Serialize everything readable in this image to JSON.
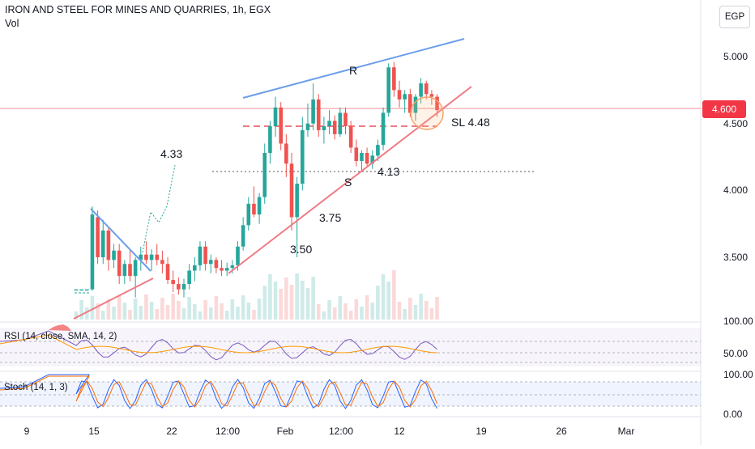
{
  "header": {
    "title": "IRON AND STEEL FOR MINES AND QUARRIES, 1h, EGX",
    "vol_label": "Vol"
  },
  "currency_button": {
    "label": "EGP"
  },
  "price_axis": {
    "ticks": [
      "5.000",
      "4.500",
      "4.000",
      "3.500"
    ],
    "current_price": "4.600"
  },
  "rsi_axis": {
    "ticks": [
      "100.00",
      "50.00"
    ]
  },
  "stoch_axis": {
    "ticks": [
      "100.00",
      "0.00"
    ]
  },
  "time_axis": {
    "ticks": [
      "9",
      "15",
      "22",
      "12:00",
      "Feb",
      "12:00",
      "12",
      "19",
      "26",
      "Mar"
    ]
  },
  "indicators": {
    "rsi_label": "RSI (14, close, SMA, 14, 2)",
    "stoch_label": "Stoch (14, 1, 3)"
  },
  "annotations": {
    "resistance": "R",
    "support": "S",
    "stop_loss": "SL  4.48",
    "level_413": "4.13",
    "level_433": "4.33",
    "level_375": "3.75",
    "level_350": "3.50"
  },
  "colors": {
    "up": "#26a69a",
    "down": "#ef5350",
    "resistance_line": "#6d9eeb",
    "support_line": "#ef7b84",
    "price_tag": "#f23645",
    "rsi_line": "#7e57c2",
    "rsi_ma": "#ff9800",
    "stoch_k": "#2962ff",
    "stoch_d": "#ff6d00"
  },
  "chart_data": {
    "type": "candlestick",
    "title": "IRON AND STEEL FOR MINES AND QUARRIES, 1h, EGX",
    "currency": "EGP",
    "ylim": [
      3.08,
      5.25
    ],
    "last_price": 4.6,
    "candles": [
      [
        3.26,
        3.26,
        3.26,
        3.26
      ],
      [
        3.26,
        3.26,
        3.26,
        3.26
      ],
      [
        3.26,
        3.26,
        3.26,
        3.26
      ],
      [
        3.26,
        3.88,
        3.25,
        3.82
      ],
      [
        3.8,
        3.85,
        3.45,
        3.5
      ],
      [
        3.5,
        3.78,
        3.45,
        3.7
      ],
      [
        3.7,
        3.72,
        3.4,
        3.48
      ],
      [
        3.48,
        3.6,
        3.42,
        3.55
      ],
      [
        3.55,
        3.6,
        3.3,
        3.36
      ],
      [
        3.36,
        3.48,
        3.3,
        3.45
      ],
      [
        3.45,
        3.55,
        3.32,
        3.36
      ],
      [
        3.36,
        3.5,
        3.2,
        3.48
      ],
      [
        3.48,
        3.58,
        3.4,
        3.52
      ],
      [
        3.52,
        3.62,
        3.45,
        3.48
      ],
      [
        3.48,
        3.56,
        3.4,
        3.52
      ],
      [
        3.52,
        3.6,
        3.44,
        3.48
      ],
      [
        3.48,
        3.55,
        3.38,
        3.45
      ],
      [
        3.45,
        3.5,
        3.3,
        3.33
      ],
      [
        3.33,
        3.4,
        3.24,
        3.3
      ],
      [
        3.3,
        3.35,
        3.22,
        3.26
      ],
      [
        3.26,
        3.34,
        3.2,
        3.3
      ],
      [
        3.3,
        3.45,
        3.26,
        3.4
      ],
      [
        3.4,
        3.5,
        3.32,
        3.44
      ],
      [
        3.44,
        3.62,
        3.4,
        3.58
      ],
      [
        3.58,
        3.62,
        3.4,
        3.45
      ],
      [
        3.45,
        3.52,
        3.38,
        3.48
      ],
      [
        3.48,
        3.5,
        3.38,
        3.42
      ],
      [
        3.42,
        3.48,
        3.36,
        3.4
      ],
      [
        3.4,
        3.46,
        3.36,
        3.42
      ],
      [
        3.42,
        3.48,
        3.38,
        3.44
      ],
      [
        3.44,
        3.62,
        3.4,
        3.58
      ],
      [
        3.58,
        3.8,
        3.55,
        3.74
      ],
      [
        3.74,
        3.95,
        3.7,
        3.9
      ],
      [
        3.9,
        4.03,
        3.8,
        3.82
      ],
      [
        3.82,
        3.98,
        3.75,
        3.95
      ],
      [
        3.95,
        4.35,
        3.9,
        4.28
      ],
      [
        4.28,
        4.52,
        4.2,
        4.48
      ],
      [
        4.48,
        4.7,
        4.4,
        4.62
      ],
      [
        4.62,
        4.66,
        4.3,
        4.35
      ],
      [
        4.35,
        4.42,
        4.1,
        4.2
      ],
      [
        4.2,
        4.28,
        3.7,
        3.8
      ],
      [
        3.8,
        4.1,
        3.5,
        4.05
      ],
      [
        4.05,
        4.55,
        4.0,
        4.45
      ],
      [
        4.45,
        4.65,
        4.4,
        4.5
      ],
      [
        4.5,
        4.8,
        4.45,
        4.68
      ],
      [
        4.68,
        4.72,
        4.4,
        4.45
      ],
      [
        4.45,
        4.55,
        4.35,
        4.48
      ],
      [
        4.48,
        4.6,
        4.42,
        4.52
      ],
      [
        4.52,
        4.56,
        4.38,
        4.42
      ],
      [
        4.42,
        4.62,
        4.4,
        4.58
      ],
      [
        4.58,
        4.62,
        4.42,
        4.48
      ],
      [
        4.48,
        4.52,
        4.28,
        4.32
      ],
      [
        4.32,
        4.38,
        4.18,
        4.22
      ],
      [
        4.22,
        4.3,
        4.15,
        4.28
      ],
      [
        4.28,
        4.32,
        4.18,
        4.2
      ],
      [
        4.2,
        4.3,
        4.16,
        4.26
      ],
      [
        4.26,
        4.38,
        4.22,
        4.34
      ],
      [
        4.34,
        4.62,
        4.3,
        4.58
      ],
      [
        4.58,
        4.95,
        4.55,
        4.92
      ],
      [
        4.92,
        4.96,
        4.7,
        4.75
      ],
      [
        4.75,
        4.82,
        4.62,
        4.68
      ],
      [
        4.68,
        4.75,
        4.58,
        4.72
      ],
      [
        4.72,
        4.76,
        4.55,
        4.58
      ],
      [
        4.58,
        4.72,
        4.52,
        4.7
      ],
      [
        4.7,
        4.84,
        4.65,
        4.8
      ],
      [
        4.8,
        4.82,
        4.68,
        4.72
      ],
      [
        4.72,
        4.75,
        4.64,
        4.7
      ],
      [
        4.7,
        4.72,
        4.55,
        4.6
      ]
    ],
    "lines": {
      "resistance": "R",
      "support": "S",
      "stop_loss": 4.48,
      "level_4_13": 4.13
    },
    "rsi": {
      "ylim": [
        0,
        100
      ],
      "overbought": 70,
      "oversold": 30
    },
    "stoch": {
      "ylim": [
        0,
        100
      ],
      "overbought": 80,
      "oversold": 20
    }
  }
}
